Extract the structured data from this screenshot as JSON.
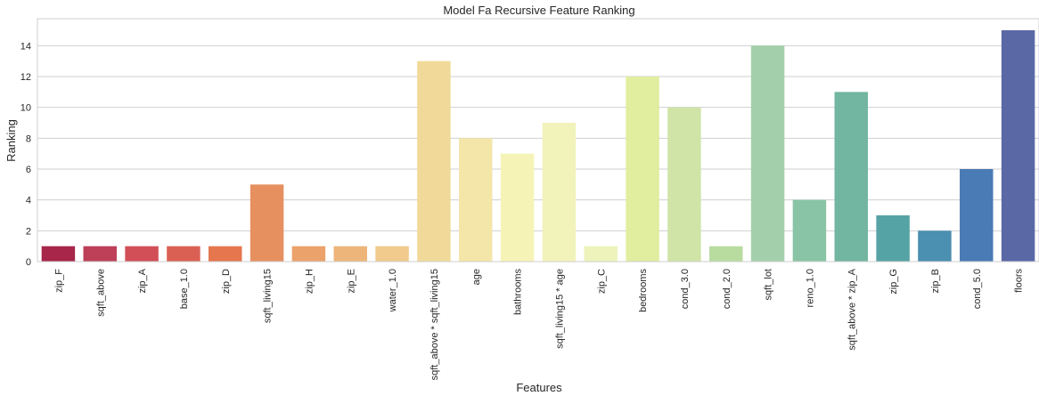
{
  "chart_data": {
    "type": "bar",
    "title": "Model Fa Recursive Feature Ranking",
    "xlabel": "Features",
    "ylabel": "Ranking",
    "ylim": [
      0,
      15.75
    ],
    "yticks": [
      0,
      2,
      4,
      6,
      8,
      10,
      12,
      14
    ],
    "grid": true,
    "categories": [
      "zip_F",
      "sqft_above",
      "zip_A",
      "base_1.0",
      "zip_D",
      "sqft_living15",
      "zip_H",
      "zip_E",
      "water_1.0",
      "sqft_above * sqft_living15",
      "age",
      "bathrooms",
      "sqft_living15 * age",
      "zip_C",
      "bedrooms",
      "cond_3.0",
      "cond_2.0",
      "sqft_lot",
      "reno_1.0",
      "sqft_above * zip_A",
      "zip_G",
      "zip_B",
      "cond_5.0",
      "floors"
    ],
    "values": [
      1,
      1,
      1,
      1,
      1,
      5,
      1,
      1,
      1,
      13,
      8,
      7,
      9,
      1,
      12,
      10,
      1,
      14,
      4,
      11,
      3,
      2,
      6,
      15
    ],
    "colors": [
      "#A7264A",
      "#BD3F58",
      "#D24F57",
      "#DB6054",
      "#E5764E",
      "#E69060",
      "#EBA26B",
      "#EEB57A",
      "#F1CA8D",
      "#F1DA99",
      "#F4E6A9",
      "#F6F3B6",
      "#F1F3BA",
      "#EDF3BB",
      "#E1ED9F",
      "#CFE4A6",
      "#B8DCA0",
      "#A3D0AA",
      "#88C4A5",
      "#72B5A0",
      "#56A3A5",
      "#4B8FB1",
      "#4A7BB5",
      "#5B68A6"
    ]
  }
}
